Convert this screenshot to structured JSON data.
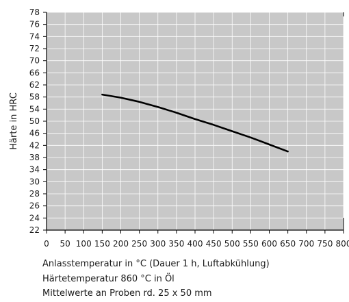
{
  "chart_data": {
    "type": "line",
    "xlabel": "Anlasstemperatur in °C (Dauer 1 h, Luftabkühlung)",
    "ylabel": "Härte in HRC",
    "xlim": [
      0,
      800
    ],
    "ylim": [
      22,
      78
    ],
    "x_ticks": [
      "0",
      "50",
      "100",
      "150",
      "200",
      "250",
      "300",
      "350",
      "400",
      "450",
      "500",
      "550",
      "600",
      "650",
      "700",
      "750",
      "800"
    ],
    "y_ticks": [
      "22",
      "24",
      "26",
      "28",
      "30",
      "34",
      "38",
      "42",
      "46",
      "50",
      "54",
      "58",
      "62",
      "66",
      "70",
      "72",
      "74",
      "76",
      "78"
    ],
    "grid": true,
    "plot_background": "#c8c8c8",
    "line_color": "#000000",
    "series": [
      {
        "x": [
          150,
          200,
          250,
          300,
          350,
          400,
          450,
          500,
          550,
          600,
          650
        ],
        "y": [
          58.8,
          57.8,
          56.4,
          54.7,
          52.8,
          50.7,
          48.8,
          46.7,
          44.6,
          42.3,
          40.0
        ]
      }
    ],
    "notes": [
      "Härtetemperatur 860 °C in Öl",
      "Mittelwerte an Proben rd. 25 x 50 mm"
    ]
  }
}
